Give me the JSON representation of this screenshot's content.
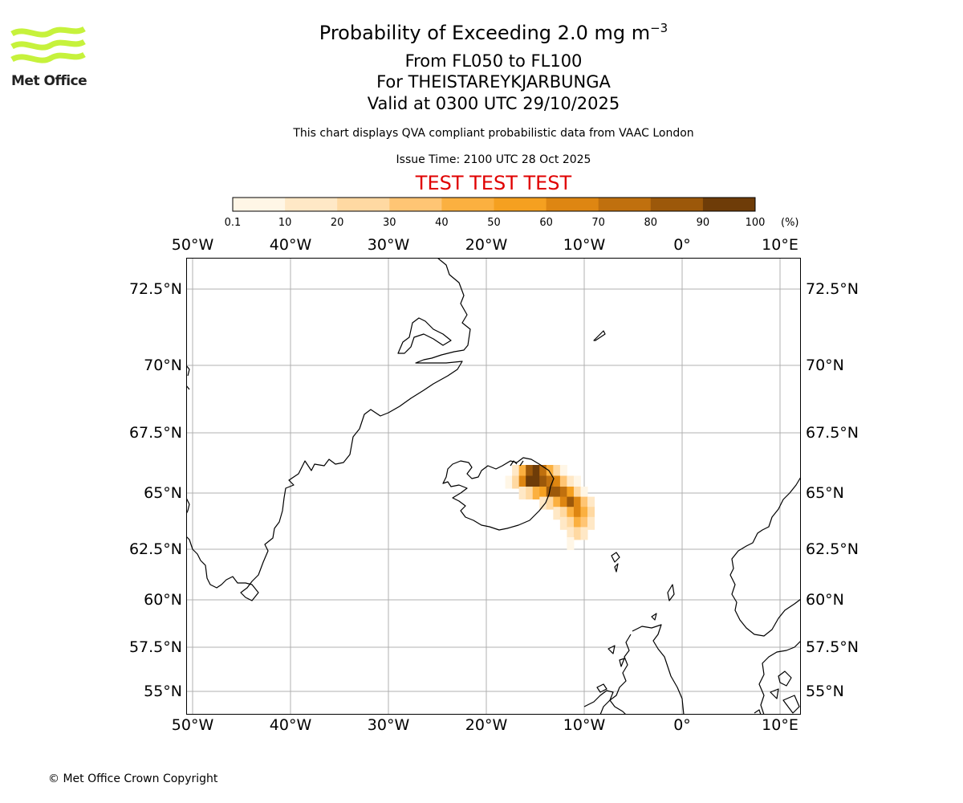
{
  "header": {
    "title_prefix": "Probability of Exceeding 2.0 mg m",
    "title_exponent": "−3",
    "levels": "From FL050 to FL100",
    "volcano": "For THEISTAREYKJARBUNGA",
    "valid": "Valid at 0300 UTC 29/10/2025",
    "note": "This chart displays QVA compliant probabilistic data from VAAC London",
    "issue": "Issue Time: 2100 UTC 28 Oct 2025",
    "test_banner": "TEST TEST TEST"
  },
  "logo": {
    "text": "Met Office",
    "color": "#c6f23c"
  },
  "colorbar": {
    "ticks": [
      "0.1",
      "10",
      "20",
      "30",
      "40",
      "50",
      "60",
      "70",
      "80",
      "90",
      "100"
    ],
    "unit": "(%)",
    "colors": [
      "#fff6e6",
      "#ffe8c6",
      "#ffd9a2",
      "#ffc574",
      "#fbb040",
      "#f5a020",
      "#de8612",
      "#c0700e",
      "#9c580a",
      "#6e3c08"
    ]
  },
  "axes": {
    "lon_labels": [
      "50°W",
      "40°W",
      "30°W",
      "20°W",
      "10°W",
      "0°",
      "10°E"
    ],
    "lat_labels": [
      "72.5°N",
      "70°N",
      "67.5°N",
      "65°N",
      "62.5°N",
      "60°N",
      "57.5°N",
      "55°N"
    ]
  },
  "plume": {
    "description_values": "probability cells along NE Iceland to SE",
    "cells": [
      {
        "lon": -17.0,
        "lat": 65.9,
        "p": 10
      },
      {
        "lon": -16.3,
        "lat": 65.9,
        "p": 45
      },
      {
        "lon": -15.6,
        "lat": 65.9,
        "p": 85
      },
      {
        "lon": -14.9,
        "lat": 65.9,
        "p": 92
      },
      {
        "lon": -14.2,
        "lat": 65.9,
        "p": 70
      },
      {
        "lon": -13.5,
        "lat": 65.9,
        "p": 40
      },
      {
        "lon": -12.8,
        "lat": 65.9,
        "p": 20
      },
      {
        "lon": -12.1,
        "lat": 65.9,
        "p": 5
      },
      {
        "lon": -17.7,
        "lat": 65.45,
        "p": 5
      },
      {
        "lon": -17.0,
        "lat": 65.45,
        "p": 20
      },
      {
        "lon": -16.3,
        "lat": 65.45,
        "p": 60
      },
      {
        "lon": -15.6,
        "lat": 65.45,
        "p": 95
      },
      {
        "lon": -14.9,
        "lat": 65.45,
        "p": 95
      },
      {
        "lon": -14.2,
        "lat": 65.45,
        "p": 85
      },
      {
        "lon": -13.5,
        "lat": 65.45,
        "p": 75
      },
      {
        "lon": -12.8,
        "lat": 65.45,
        "p": 60
      },
      {
        "lon": -12.1,
        "lat": 65.45,
        "p": 35
      },
      {
        "lon": -11.4,
        "lat": 65.45,
        "p": 15
      },
      {
        "lon": -10.7,
        "lat": 65.45,
        "p": 5
      },
      {
        "lon": -16.3,
        "lat": 65.0,
        "p": 10
      },
      {
        "lon": -15.6,
        "lat": 65.0,
        "p": 25
      },
      {
        "lon": -14.9,
        "lat": 65.0,
        "p": 40
      },
      {
        "lon": -14.2,
        "lat": 65.0,
        "p": 55
      },
      {
        "lon": -13.5,
        "lat": 65.0,
        "p": 80
      },
      {
        "lon": -12.8,
        "lat": 65.0,
        "p": 88
      },
      {
        "lon": -12.1,
        "lat": 65.0,
        "p": 75
      },
      {
        "lon": -11.4,
        "lat": 65.0,
        "p": 50
      },
      {
        "lon": -10.7,
        "lat": 65.0,
        "p": 25
      },
      {
        "lon": -10.0,
        "lat": 65.0,
        "p": 8
      },
      {
        "lon": -14.2,
        "lat": 64.55,
        "p": 10
      },
      {
        "lon": -13.5,
        "lat": 64.55,
        "p": 25
      },
      {
        "lon": -12.8,
        "lat": 64.55,
        "p": 45
      },
      {
        "lon": -12.1,
        "lat": 64.55,
        "p": 60
      },
      {
        "lon": -11.4,
        "lat": 64.55,
        "p": 80
      },
      {
        "lon": -10.7,
        "lat": 64.55,
        "p": 65
      },
      {
        "lon": -10.0,
        "lat": 64.55,
        "p": 35
      },
      {
        "lon": -9.3,
        "lat": 64.55,
        "p": 10
      },
      {
        "lon": -12.8,
        "lat": 64.1,
        "p": 10
      },
      {
        "lon": -12.1,
        "lat": 64.1,
        "p": 25
      },
      {
        "lon": -11.4,
        "lat": 64.1,
        "p": 45
      },
      {
        "lon": -10.7,
        "lat": 64.1,
        "p": 60
      },
      {
        "lon": -10.0,
        "lat": 64.1,
        "p": 45
      },
      {
        "lon": -9.3,
        "lat": 64.1,
        "p": 20
      },
      {
        "lon": -12.1,
        "lat": 63.65,
        "p": 10
      },
      {
        "lon": -11.4,
        "lat": 63.65,
        "p": 25
      },
      {
        "lon": -10.7,
        "lat": 63.65,
        "p": 40
      },
      {
        "lon": -10.0,
        "lat": 63.65,
        "p": 30
      },
      {
        "lon": -9.3,
        "lat": 63.65,
        "p": 10
      },
      {
        "lon": -11.4,
        "lat": 63.2,
        "p": 10
      },
      {
        "lon": -10.7,
        "lat": 63.2,
        "p": 20
      },
      {
        "lon": -10.0,
        "lat": 63.2,
        "p": 10
      },
      {
        "lon": -11.4,
        "lat": 62.75,
        "p": 5
      }
    ]
  },
  "footer": {
    "copyright": "© Met Office Crown Copyright"
  }
}
